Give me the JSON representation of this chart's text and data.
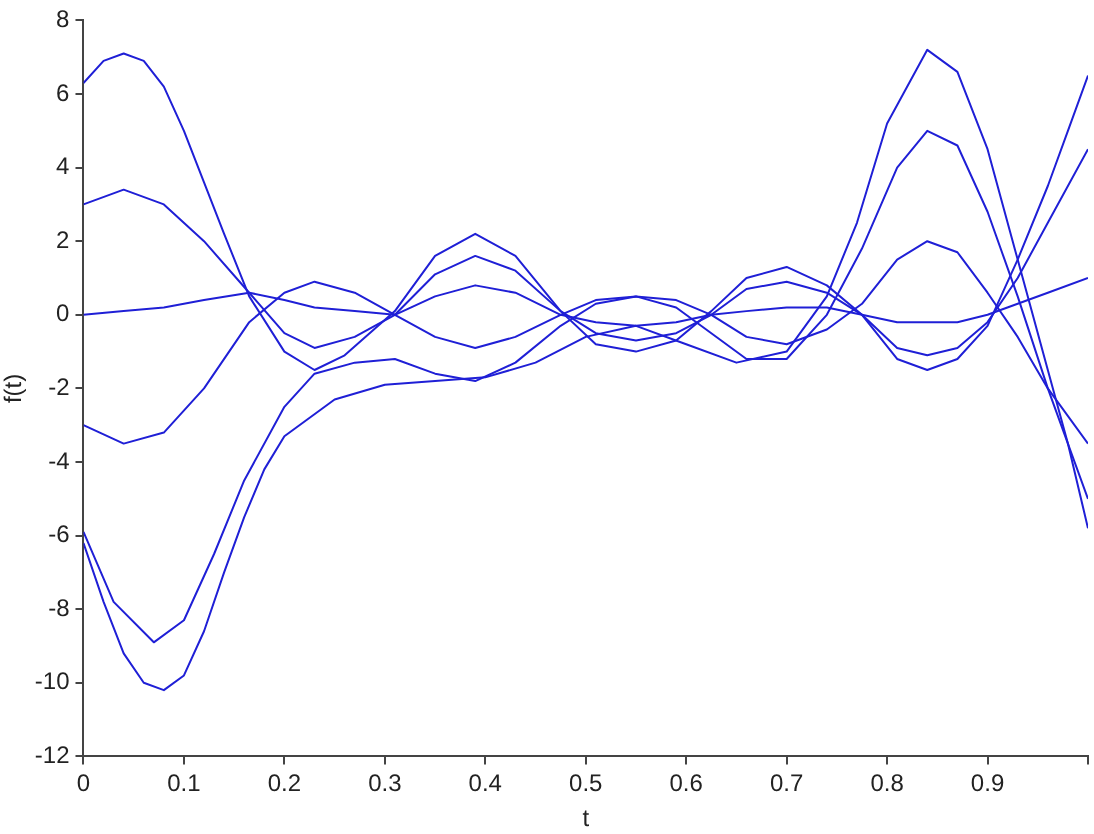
{
  "chart_data": {
    "type": "line",
    "xlabel": "t",
    "ylabel": "f(t)",
    "xlim": [
      0,
      1
    ],
    "ylim": [
      -12,
      8
    ],
    "xticks": [
      0,
      0.1,
      0.2,
      0.3,
      0.4,
      0.5,
      0.6,
      0.7,
      0.8,
      0.9,
      {
        "value": 1,
        "label": null
      }
    ],
    "yticks": [
      -12,
      -10,
      -8,
      -6,
      -4,
      -2,
      0,
      2,
      4,
      6,
      8
    ],
    "grid": false,
    "legend": false,
    "marker": "none",
    "line_style": "solid",
    "series": [
      {
        "color": "#1f1fd6",
        "x": [
          0,
          0.02,
          0.04,
          0.06,
          0.08,
          0.1,
          0.12,
          0.14,
          0.165,
          0.2,
          0.23,
          0.26,
          0.31,
          0.35,
          0.39,
          0.43,
          0.475,
          0.51,
          0.55,
          0.59,
          0.625,
          0.66,
          0.7,
          0.74,
          0.775,
          0.81,
          0.84,
          0.87,
          0.9,
          0.93,
          0.96,
          0.98,
          1.0
        ],
        "values": [
          6.3,
          6.9,
          7.1,
          6.9,
          6.2,
          5.0,
          3.6,
          2.2,
          0.5,
          -1.0,
          -1.5,
          -1.1,
          0.1,
          1.6,
          2.2,
          1.6,
          0.1,
          -0.8,
          -1.0,
          -0.7,
          0.1,
          1.0,
          1.3,
          0.8,
          0.0,
          -1.2,
          -1.5,
          -1.2,
          -0.3,
          1.5,
          3.5,
          5.0,
          6.5
        ]
      },
      {
        "color": "#1f1fd6",
        "x": [
          0,
          0.04,
          0.08,
          0.12,
          0.165,
          0.2,
          0.23,
          0.27,
          0.31,
          0.35,
          0.39,
          0.43,
          0.475,
          0.51,
          0.55,
          0.59,
          0.625,
          0.66,
          0.7,
          0.74,
          0.775,
          0.81,
          0.84,
          0.87,
          0.9,
          0.93,
          0.96,
          1.0
        ],
        "values": [
          3.0,
          3.4,
          3.0,
          2.0,
          0.6,
          -0.5,
          -0.9,
          -0.6,
          0.0,
          1.1,
          1.6,
          1.2,
          0.1,
          -0.5,
          -0.7,
          -0.5,
          0.0,
          0.7,
          0.9,
          0.6,
          0.0,
          -0.9,
          -1.1,
          -0.9,
          -0.2,
          1.0,
          2.5,
          4.5
        ]
      },
      {
        "color": "#1f1fd6",
        "x": [
          0,
          0.04,
          0.08,
          0.12,
          0.165,
          0.2,
          0.23,
          0.27,
          0.31,
          0.35,
          0.39,
          0.43,
          0.475,
          0.51,
          0.55,
          0.59,
          0.625,
          0.66,
          0.7,
          0.74,
          0.775,
          0.81,
          0.84,
          0.87,
          0.9,
          0.93,
          0.96,
          1.0
        ],
        "values": [
          0.0,
          0.1,
          0.2,
          0.4,
          0.6,
          0.4,
          0.2,
          0.1,
          0.0,
          0.5,
          0.8,
          0.6,
          0.0,
          -0.2,
          -0.3,
          -0.2,
          0.0,
          0.1,
          0.2,
          0.2,
          0.0,
          -0.2,
          -0.2,
          -0.2,
          0.0,
          0.3,
          0.6,
          1.0
        ]
      },
      {
        "color": "#1f1fd6",
        "x": [
          0,
          0.04,
          0.08,
          0.12,
          0.165,
          0.2,
          0.23,
          0.27,
          0.31,
          0.35,
          0.39,
          0.43,
          0.475,
          0.51,
          0.55,
          0.59,
          0.625,
          0.66,
          0.7,
          0.74,
          0.775,
          0.81,
          0.84,
          0.87,
          0.9,
          0.93,
          0.96,
          1.0
        ],
        "values": [
          -3.0,
          -3.5,
          -3.2,
          -2.0,
          -0.2,
          0.6,
          0.9,
          0.6,
          0.0,
          -0.6,
          -0.9,
          -0.6,
          0.0,
          0.4,
          0.5,
          0.4,
          0.0,
          -0.6,
          -0.8,
          -0.4,
          0.3,
          1.5,
          2.0,
          1.7,
          0.6,
          -0.6,
          -2.0,
          -3.5
        ]
      },
      {
        "color": "#1f1fd6",
        "x": [
          0,
          0.03,
          0.07,
          0.1,
          0.13,
          0.16,
          0.2,
          0.23,
          0.27,
          0.31,
          0.35,
          0.39,
          0.43,
          0.475,
          0.51,
          0.55,
          0.59,
          0.625,
          0.66,
          0.7,
          0.74,
          0.775,
          0.81,
          0.84,
          0.87,
          0.9,
          0.93,
          0.96,
          1.0
        ],
        "values": [
          -5.9,
          -7.8,
          -8.9,
          -8.3,
          -6.5,
          -4.5,
          -2.5,
          -1.6,
          -1.3,
          -1.2,
          -1.6,
          -1.8,
          -1.3,
          -0.3,
          0.3,
          0.5,
          0.2,
          -0.5,
          -1.2,
          -1.2,
          0.0,
          1.8,
          4.0,
          5.0,
          4.6,
          2.8,
          0.5,
          -2.0,
          -5.0
        ]
      },
      {
        "color": "#1f1fd6",
        "x": [
          0,
          0.02,
          0.04,
          0.06,
          0.08,
          0.1,
          0.12,
          0.14,
          0.16,
          0.18,
          0.2,
          0.25,
          0.3,
          0.35,
          0.4,
          0.45,
          0.5,
          0.55,
          0.6,
          0.65,
          0.7,
          0.74,
          0.77,
          0.8,
          0.84,
          0.87,
          0.9,
          0.93,
          0.96,
          0.98,
          1.0
        ],
        "values": [
          -6.2,
          -7.8,
          -9.2,
          -10.0,
          -10.2,
          -9.8,
          -8.6,
          -7.0,
          -5.5,
          -4.2,
          -3.3,
          -2.3,
          -1.9,
          -1.8,
          -1.7,
          -1.3,
          -0.6,
          -0.3,
          -0.8,
          -1.3,
          -1.0,
          0.5,
          2.5,
          5.2,
          7.2,
          6.6,
          4.5,
          1.5,
          -1.5,
          -3.5,
          -5.8
        ]
      }
    ]
  }
}
